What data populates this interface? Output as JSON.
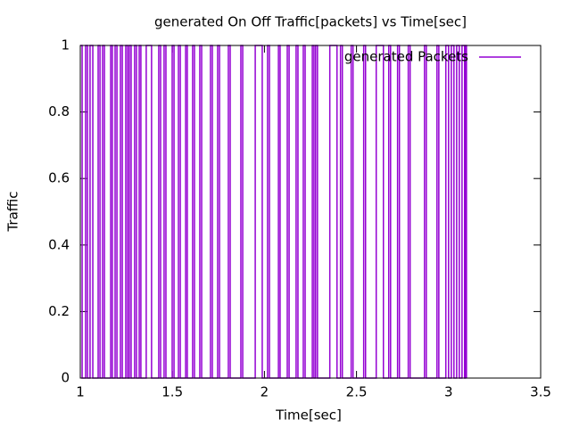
{
  "chart_data": {
    "type": "line",
    "step": true,
    "title": "generated On Off Traffic[packets] vs Time[sec]",
    "x_label": "Time[sec]",
    "y_label": "Traffic",
    "xlim": [
      1,
      3.5
    ],
    "ylim": [
      0,
      1
    ],
    "xticks": [
      1,
      1.5,
      2,
      2.5,
      3,
      3.5
    ],
    "yticks": [
      0,
      0.2,
      0.4,
      0.6,
      0.8,
      1
    ],
    "legend": "top-right",
    "series": [
      {
        "name": "generated Packets",
        "color": "#9400d3",
        "x": [
          1.0,
          1.01,
          1.029,
          1.039,
          1.053,
          1.068,
          1.097,
          1.107,
          1.121,
          1.131,
          1.165,
          1.174,
          1.189,
          1.199,
          1.218,
          1.228,
          1.247,
          1.257,
          1.266,
          1.276,
          1.295,
          1.305,
          1.32,
          1.329,
          1.358,
          1.387,
          1.426,
          1.436,
          1.455,
          1.465,
          1.499,
          1.509,
          1.533,
          1.543,
          1.572,
          1.581,
          1.61,
          1.62,
          1.649,
          1.659,
          1.707,
          1.717,
          1.746,
          1.756,
          1.804,
          1.814,
          1.872,
          1.882,
          1.95,
          1.988,
          2.017,
          2.027,
          2.076,
          2.085,
          2.124,
          2.134,
          2.172,
          2.182,
          2.211,
          2.221,
          2.26,
          2.269,
          2.278,
          2.288,
          2.355,
          2.394,
          2.413,
          2.423,
          2.471,
          2.481,
          2.539,
          2.549,
          2.607,
          2.646,
          2.675,
          2.685,
          2.723,
          2.733,
          2.781,
          2.791,
          2.869,
          2.879,
          2.937,
          2.947,
          2.985,
          3.0,
          3.015,
          3.029,
          3.044,
          3.058,
          3.073,
          3.087,
          3.092,
          3.097
        ],
        "values": [
          1,
          0,
          1,
          0,
          1,
          0,
          1,
          0,
          1,
          0,
          1,
          0,
          1,
          0,
          1,
          0,
          1,
          0,
          1,
          0,
          1,
          0,
          1,
          0,
          1,
          0,
          1,
          0,
          1,
          0,
          1,
          0,
          1,
          0,
          1,
          0,
          1,
          0,
          1,
          0,
          1,
          0,
          1,
          0,
          1,
          0,
          1,
          0,
          1,
          0,
          1,
          0,
          1,
          0,
          1,
          0,
          1,
          0,
          1,
          0,
          1,
          0,
          1,
          0,
          1,
          0,
          1,
          0,
          1,
          0,
          1,
          0,
          1,
          0,
          1,
          0,
          1,
          0,
          1,
          0,
          1,
          0,
          1,
          0,
          1,
          0,
          1,
          0,
          1,
          0,
          1,
          0,
          1,
          0
        ]
      }
    ]
  }
}
